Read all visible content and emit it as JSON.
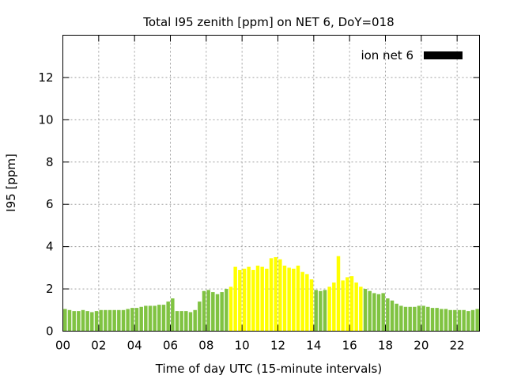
{
  "chart_data": {
    "type": "bar",
    "title": "Total I95 zenith [ppm] on NET 6, DoY=018",
    "xlabel": "Time of day UTC (15-minute intervals)",
    "ylabel": "I95 [ppm]",
    "xlim": [
      0,
      23.25
    ],
    "ylim": [
      0,
      14
    ],
    "xticks": [
      "00",
      "02",
      "04",
      "06",
      "08",
      "10",
      "12",
      "14",
      "16",
      "18",
      "20",
      "22"
    ],
    "yticks": [
      "0",
      "2",
      "4",
      "6",
      "8",
      "10",
      "12"
    ],
    "grid": true,
    "legend": {
      "label": "ion net 6",
      "placement": "top-right",
      "color": "#000000"
    },
    "interval_hours": 0.25,
    "colors": {
      "low": "#80c342",
      "high": "#ffff00"
    },
    "values": [
      1.05,
      1.0,
      0.95,
      0.95,
      1.0,
      0.95,
      0.9,
      0.95,
      1.0,
      1.0,
      1.0,
      1.0,
      1.0,
      1.0,
      1.05,
      1.1,
      1.1,
      1.15,
      1.2,
      1.2,
      1.2,
      1.25,
      1.25,
      1.4,
      1.55,
      0.95,
      0.95,
      0.95,
      0.9,
      1.0,
      1.4,
      1.9,
      1.95,
      1.85,
      1.75,
      1.85,
      2.0,
      2.1,
      3.05,
      2.9,
      2.95,
      3.05,
      2.9,
      3.1,
      3.05,
      2.95,
      3.45,
      3.5,
      3.4,
      3.1,
      3.0,
      2.95,
      3.1,
      2.8,
      2.7,
      2.45,
      1.95,
      1.9,
      1.95,
      2.1,
      2.3,
      3.55,
      2.4,
      2.55,
      2.6,
      2.3,
      2.1,
      2.0,
      1.9,
      1.8,
      1.75,
      1.8,
      1.55,
      1.45,
      1.3,
      1.2,
      1.15,
      1.15,
      1.15,
      1.2,
      1.2,
      1.15,
      1.1,
      1.1,
      1.05,
      1.05,
      1.0,
      1.0,
      1.0,
      1.0,
      0.95,
      1.0,
      1.05
    ],
    "bar_color_class": "low above 2.0 ppm is high"
  }
}
